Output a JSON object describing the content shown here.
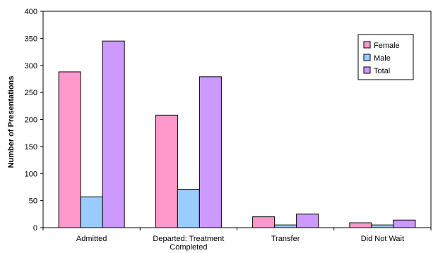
{
  "chart_data": {
    "type": "bar",
    "title": "",
    "xlabel": "",
    "ylabel": "Number of Presentations",
    "ylim": [
      0,
      400
    ],
    "yticks": [
      0,
      50,
      100,
      150,
      200,
      250,
      300,
      350,
      400
    ],
    "categories": [
      [
        "Admitted"
      ],
      [
        "Departed: Treatment",
        "Completed"
      ],
      [
        "Transfer"
      ],
      [
        "Did Not Wait"
      ]
    ],
    "series": [
      {
        "name": "Female",
        "color": "#ff99cc",
        "values": [
          288,
          208,
          20,
          9
        ]
      },
      {
        "name": "Male",
        "color": "#99ccff",
        "values": [
          57,
          71,
          5,
          5
        ]
      },
      {
        "name": "Total",
        "color": "#cc99ff",
        "values": [
          345,
          279,
          25,
          14
        ]
      }
    ],
    "legend_position": "top-right",
    "grid": false
  }
}
